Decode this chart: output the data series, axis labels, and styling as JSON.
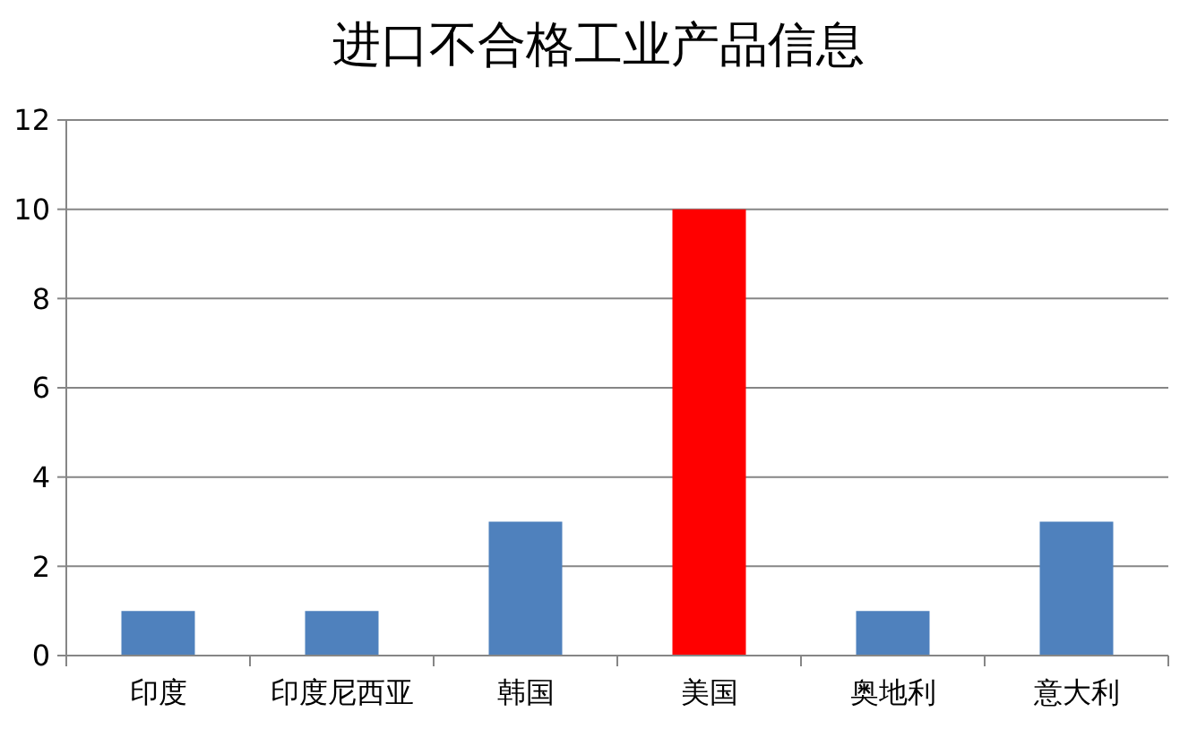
{
  "chart_data": {
    "type": "bar",
    "title": "进口不合格工业产品信息",
    "categories": [
      "印度",
      "印度尼西亚",
      "韩国",
      "美国",
      "奥地利",
      "意大利"
    ],
    "values": [
      1,
      1,
      3,
      10,
      1,
      3
    ],
    "colors": [
      "#4f81bd",
      "#4f81bd",
      "#4f81bd",
      "#ff0000",
      "#4f81bd",
      "#4f81bd"
    ],
    "ylim": [
      0,
      12
    ],
    "yticks": [
      0,
      2,
      4,
      6,
      8,
      10,
      12
    ],
    "grid": "y"
  }
}
